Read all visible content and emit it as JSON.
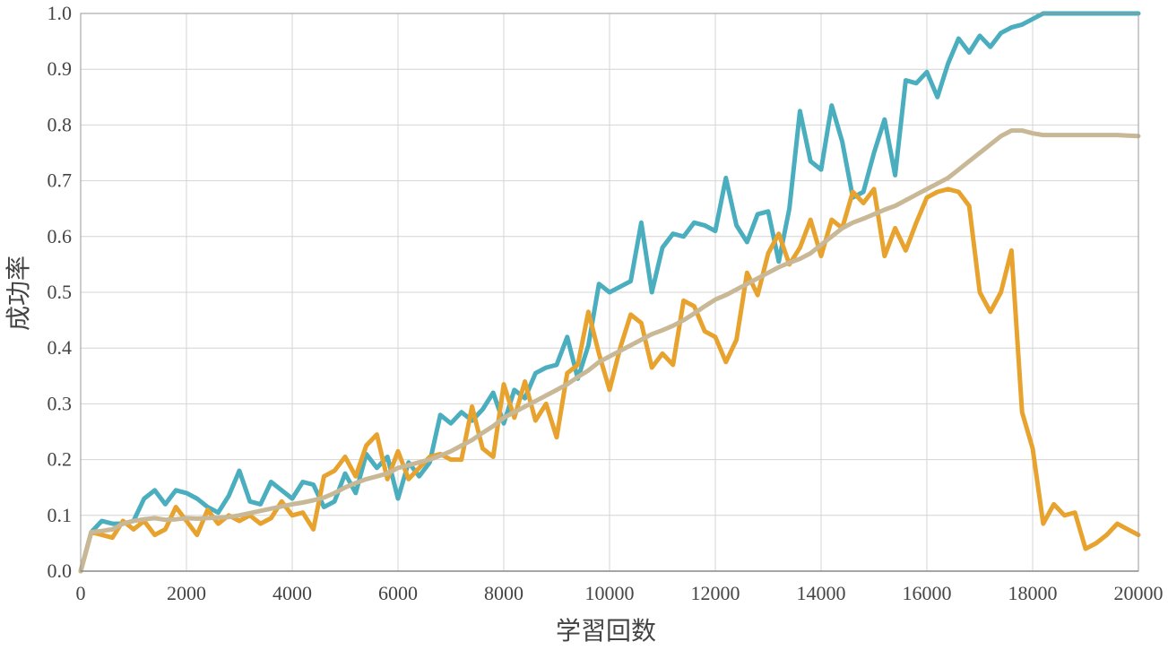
{
  "chart_data": {
    "type": "line",
    "xlabel": "学習回数",
    "ylabel": "成功率",
    "xlim": [
      0,
      20000
    ],
    "ylim": [
      0.0,
      1.0
    ],
    "xticks": [
      "0",
      "2000",
      "4000",
      "6000",
      "8000",
      "10000",
      "12000",
      "14000",
      "16000",
      "18000",
      "20000"
    ],
    "yticks": [
      "0.0",
      "0.1",
      "0.2",
      "0.3",
      "0.4",
      "0.5",
      "0.6",
      "0.7",
      "0.8",
      "0.9",
      "1.0"
    ],
    "grid": true,
    "legend": "none",
    "series": [
      {
        "color": "#4aaebf",
        "x": [
          0,
          200,
          400,
          600,
          800,
          1000,
          1200,
          1400,
          1600,
          1800,
          2000,
          2200,
          2400,
          2600,
          2800,
          3000,
          3200,
          3400,
          3600,
          3800,
          4000,
          4200,
          4400,
          4600,
          4800,
          5000,
          5200,
          5400,
          5600,
          5800,
          6000,
          6200,
          6400,
          6600,
          6800,
          7000,
          7200,
          7400,
          7600,
          7800,
          8000,
          8200,
          8400,
          8600,
          8800,
          9000,
          9200,
          9400,
          9600,
          9800,
          10000,
          10200,
          10400,
          10600,
          10800,
          11000,
          11200,
          11400,
          11600,
          11800,
          12000,
          12200,
          12400,
          12600,
          12800,
          13000,
          13200,
          13400,
          13600,
          13800,
          14000,
          14200,
          14400,
          14600,
          14800,
          15000,
          15200,
          15400,
          15600,
          15800,
          16000,
          16200,
          16400,
          16600,
          16800,
          17000,
          17200,
          17400,
          17600,
          17800,
          18000,
          18200,
          18400,
          18600,
          18800,
          19000,
          19200,
          19400,
          19600,
          19800,
          20000
        ],
        "y": [
          0.0,
          0.07,
          0.09,
          0.085,
          0.085,
          0.09,
          0.13,
          0.145,
          0.12,
          0.145,
          0.14,
          0.13,
          0.115,
          0.105,
          0.135,
          0.18,
          0.125,
          0.12,
          0.16,
          0.145,
          0.13,
          0.16,
          0.155,
          0.115,
          0.125,
          0.175,
          0.14,
          0.21,
          0.185,
          0.205,
          0.13,
          0.195,
          0.17,
          0.195,
          0.28,
          0.265,
          0.285,
          0.27,
          0.29,
          0.32,
          0.265,
          0.325,
          0.31,
          0.355,
          0.365,
          0.37,
          0.42,
          0.345,
          0.405,
          0.515,
          0.5,
          0.51,
          0.52,
          0.625,
          0.5,
          0.58,
          0.605,
          0.6,
          0.625,
          0.62,
          0.61,
          0.705,
          0.62,
          0.59,
          0.64,
          0.645,
          0.555,
          0.65,
          0.825,
          0.735,
          0.72,
          0.835,
          0.77,
          0.67,
          0.68,
          0.75,
          0.81,
          0.71,
          0.88,
          0.875,
          0.895,
          0.85,
          0.91,
          0.955,
          0.93,
          0.96,
          0.94,
          0.965,
          0.975,
          0.98,
          0.99,
          1.0,
          1.0,
          1.0,
          1.0,
          1.0,
          1.0,
          1.0,
          1.0,
          1.0,
          1.0
        ]
      },
      {
        "color": "#e8a22e",
        "x": [
          0,
          200,
          400,
          600,
          800,
          1000,
          1200,
          1400,
          1600,
          1800,
          2000,
          2200,
          2400,
          2600,
          2800,
          3000,
          3200,
          3400,
          3600,
          3800,
          4000,
          4200,
          4400,
          4600,
          4800,
          5000,
          5200,
          5400,
          5600,
          5800,
          6000,
          6200,
          6400,
          6600,
          6800,
          7000,
          7200,
          7400,
          7600,
          7800,
          8000,
          8200,
          8400,
          8600,
          8800,
          9000,
          9200,
          9400,
          9600,
          9800,
          10000,
          10200,
          10400,
          10600,
          10800,
          11000,
          11200,
          11400,
          11600,
          11800,
          12000,
          12200,
          12400,
          12600,
          12800,
          13000,
          13200,
          13400,
          13600,
          13800,
          14000,
          14200,
          14400,
          14600,
          14800,
          15000,
          15200,
          15400,
          15600,
          15800,
          16000,
          16200,
          16400,
          16600,
          16800,
          17000,
          17200,
          17400,
          17600,
          17800,
          18000,
          18200,
          18400,
          18600,
          18800,
          19000,
          19200,
          19400,
          19600,
          19800,
          20000
        ],
        "y": [
          0.0,
          0.07,
          0.065,
          0.06,
          0.09,
          0.075,
          0.09,
          0.065,
          0.075,
          0.115,
          0.09,
          0.065,
          0.11,
          0.085,
          0.1,
          0.09,
          0.1,
          0.085,
          0.095,
          0.125,
          0.1,
          0.105,
          0.075,
          0.17,
          0.18,
          0.205,
          0.17,
          0.225,
          0.245,
          0.165,
          0.215,
          0.165,
          0.185,
          0.205,
          0.21,
          0.2,
          0.2,
          0.295,
          0.22,
          0.205,
          0.335,
          0.275,
          0.34,
          0.27,
          0.3,
          0.24,
          0.355,
          0.37,
          0.465,
          0.39,
          0.325,
          0.4,
          0.46,
          0.445,
          0.365,
          0.39,
          0.37,
          0.485,
          0.475,
          0.43,
          0.42,
          0.375,
          0.415,
          0.535,
          0.495,
          0.57,
          0.605,
          0.55,
          0.58,
          0.63,
          0.565,
          0.63,
          0.615,
          0.68,
          0.66,
          0.685,
          0.565,
          0.615,
          0.575,
          0.625,
          0.67,
          0.68,
          0.685,
          0.68,
          0.655,
          0.5,
          0.465,
          0.5,
          0.575,
          0.285,
          0.22,
          0.085,
          0.12,
          0.1,
          0.105,
          0.04,
          0.05,
          0.065,
          0.085,
          0.075,
          0.065
        ]
      },
      {
        "color": "#c8b896",
        "x": [
          0,
          200,
          400,
          600,
          800,
          1000,
          1200,
          1400,
          1600,
          1800,
          2000,
          2200,
          2400,
          2600,
          2800,
          3000,
          3200,
          3400,
          3600,
          3800,
          4000,
          4200,
          4400,
          4600,
          4800,
          5000,
          5200,
          5400,
          5600,
          5800,
          6000,
          6200,
          6400,
          6600,
          6800,
          7000,
          7200,
          7400,
          7600,
          7800,
          8000,
          8200,
          8400,
          8600,
          8800,
          9000,
          9200,
          9400,
          9600,
          9800,
          10000,
          10200,
          10400,
          10600,
          10800,
          11000,
          11200,
          11400,
          11600,
          11800,
          12000,
          12200,
          12400,
          12600,
          12800,
          13000,
          13200,
          13400,
          13600,
          13800,
          14000,
          14200,
          14400,
          14600,
          14800,
          15000,
          15200,
          15400,
          15600,
          15800,
          16000,
          16200,
          16400,
          16600,
          16800,
          17000,
          17200,
          17400,
          17600,
          17800,
          18000,
          18200,
          18400,
          18600,
          18800,
          19000,
          19200,
          19400,
          19600,
          19800,
          20000
        ],
        "y": [
          0.0,
          0.07,
          0.072,
          0.075,
          0.085,
          0.09,
          0.093,
          0.095,
          0.092,
          0.093,
          0.095,
          0.094,
          0.095,
          0.096,
          0.097,
          0.1,
          0.104,
          0.108,
          0.112,
          0.116,
          0.12,
          0.123,
          0.127,
          0.132,
          0.14,
          0.15,
          0.158,
          0.165,
          0.17,
          0.175,
          0.185,
          0.19,
          0.195,
          0.2,
          0.207,
          0.215,
          0.225,
          0.235,
          0.248,
          0.26,
          0.275,
          0.285,
          0.295,
          0.305,
          0.315,
          0.325,
          0.335,
          0.348,
          0.36,
          0.375,
          0.385,
          0.395,
          0.405,
          0.415,
          0.425,
          0.432,
          0.44,
          0.45,
          0.462,
          0.475,
          0.487,
          0.495,
          0.505,
          0.515,
          0.525,
          0.535,
          0.545,
          0.553,
          0.56,
          0.57,
          0.585,
          0.6,
          0.615,
          0.625,
          0.632,
          0.64,
          0.648,
          0.655,
          0.665,
          0.675,
          0.685,
          0.695,
          0.705,
          0.72,
          0.735,
          0.75,
          0.765,
          0.78,
          0.79,
          0.79,
          0.785,
          0.782,
          0.782,
          0.782,
          0.782,
          0.782,
          0.782,
          0.782,
          0.782,
          0.781,
          0.78
        ]
      }
    ]
  }
}
